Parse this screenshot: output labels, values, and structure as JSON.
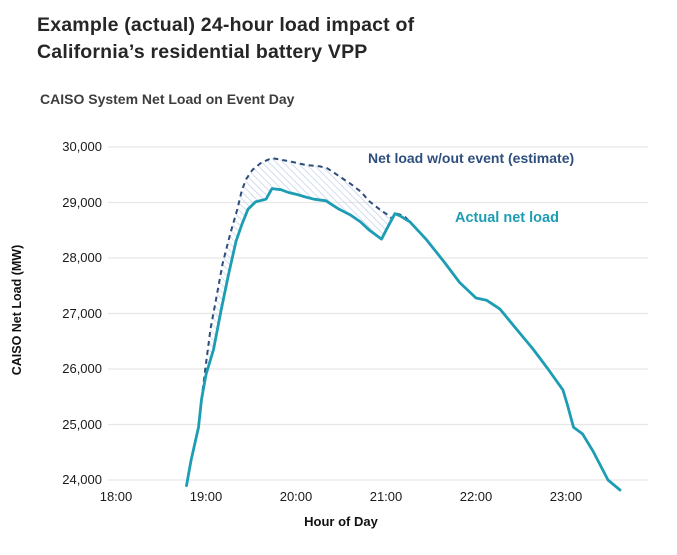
{
  "page": {
    "title_line1": "Example (actual) 24-hour load impact of",
    "title_line2": "California’s residential battery VPP"
  },
  "chart": {
    "colors": {
      "actual_line": "#1d9db3",
      "estimate_line": "#2e4d7b",
      "hatch": "#bfd0e8",
      "grid": "#e7e7e7",
      "title_text": "#3d3d3d",
      "heading_text": "#262626"
    }
  },
  "chart_data": {
    "type": "line",
    "title": "CAISO System Net Load on Event Day",
    "xlabel": "Hour of Day",
    "ylabel": "CAISO Net Load (MW)",
    "x_ticks": [
      "18:00",
      "19:00",
      "20:00",
      "21:00",
      "22:00",
      "23:00"
    ],
    "y_ticks": [
      "30,000",
      "29,000",
      "28,000",
      "27,000",
      "26,000",
      "25,000",
      "24,000"
    ],
    "ylim": [
      24000,
      30000
    ],
    "grid": "horizontal only",
    "legend_position": "inline annotations near curves",
    "hatch_region": {
      "from": "18:57",
      "to": "21:16",
      "style": "diagonal-hatch between estimate and actual"
    },
    "series": [
      {
        "name": "Net load w/out event (estimate)",
        "style": "dashed",
        "color": "#2e4d7b",
        "points": [
          [
            "18:57",
            25450
          ],
          [
            "19:00",
            26100
          ],
          [
            "19:03",
            26720
          ],
          [
            "19:07",
            27300
          ],
          [
            "19:11",
            27890
          ],
          [
            "19:16",
            28420
          ],
          [
            "19:21",
            28890
          ],
          [
            "19:24",
            29230
          ],
          [
            "19:27",
            29430
          ],
          [
            "19:31",
            29590
          ],
          [
            "19:37",
            29720
          ],
          [
            "19:44",
            29800
          ],
          [
            "19:56",
            29740
          ],
          [
            "20:06",
            29680
          ],
          [
            "20:16",
            29650
          ],
          [
            "20:21",
            29615
          ],
          [
            "20:29",
            29470
          ],
          [
            "20:36",
            29345
          ],
          [
            "20:43",
            29200
          ],
          [
            "20:49",
            29020
          ],
          [
            "20:56",
            28870
          ],
          [
            "21:01",
            28780
          ],
          [
            "21:04",
            28710
          ],
          [
            "21:07",
            28800
          ],
          [
            "21:12",
            28760
          ],
          [
            "21:16",
            28650
          ]
        ]
      },
      {
        "name": "Actual net load",
        "style": "solid",
        "color": "#1d9db3",
        "points": [
          [
            "18:47",
            23900
          ],
          [
            "18:50",
            24350
          ],
          [
            "18:55",
            24950
          ],
          [
            "18:57",
            25450
          ],
          [
            "19:00",
            25900
          ],
          [
            "19:05",
            26350
          ],
          [
            "19:10",
            27050
          ],
          [
            "19:15",
            27700
          ],
          [
            "19:20",
            28300
          ],
          [
            "19:24",
            28610
          ],
          [
            "19:28",
            28880
          ],
          [
            "19:33",
            29010
          ],
          [
            "19:40",
            29060
          ],
          [
            "19:44",
            29250
          ],
          [
            "19:50",
            29230
          ],
          [
            "19:55",
            29180
          ],
          [
            "20:00",
            29150
          ],
          [
            "20:06",
            29100
          ],
          [
            "20:12",
            29060
          ],
          [
            "20:20",
            29030
          ],
          [
            "20:28",
            28890
          ],
          [
            "20:36",
            28780
          ],
          [
            "20:43",
            28650
          ],
          [
            "20:49",
            28500
          ],
          [
            "20:57",
            28340
          ],
          [
            "21:02",
            28600
          ],
          [
            "21:06",
            28800
          ],
          [
            "21:10",
            28750
          ],
          [
            "21:16",
            28650
          ],
          [
            "21:27",
            28330
          ],
          [
            "21:39",
            27920
          ],
          [
            "21:49",
            27560
          ],
          [
            "22:00",
            27280
          ],
          [
            "22:07",
            27240
          ],
          [
            "22:16",
            27080
          ],
          [
            "22:26",
            26750
          ],
          [
            "22:38",
            26360
          ],
          [
            "22:48",
            26000
          ],
          [
            "22:58",
            25620
          ],
          [
            "23:01",
            25350
          ],
          [
            "23:05",
            24950
          ],
          [
            "23:11",
            24830
          ],
          [
            "23:18",
            24520
          ],
          [
            "23:28",
            24000
          ],
          [
            "23:36",
            23820
          ]
        ]
      }
    ]
  }
}
